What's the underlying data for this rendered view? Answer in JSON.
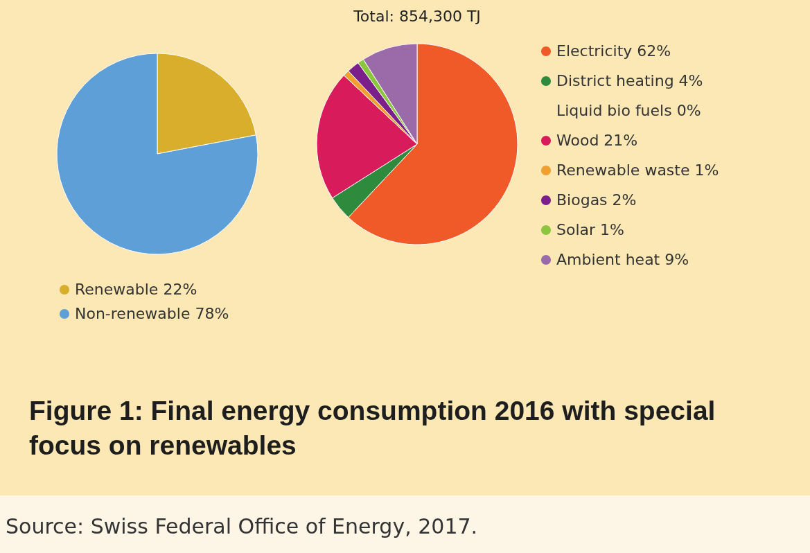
{
  "chart_data": [
    {
      "type": "pie",
      "categories": [
        "Renewable",
        "Non-renewable"
      ],
      "values": [
        22,
        78
      ],
      "value_labels": [
        "22%",
        "78%"
      ],
      "colors": [
        "#d9ae2c",
        "#5e9fd8"
      ],
      "legend": "bottom",
      "annotations": [
        "Figure 1:  Final energy consumption 2016 with special focus on renewables",
        "Source: Swiss Federal Office of Energy, 2017."
      ]
    },
    {
      "type": "pie",
      "title": "Total: 854,300 TJ",
      "categories": [
        "Electricity",
        "District heating",
        "Liquid bio fuels",
        "Wood",
        "Renewable waste",
        "Biogas",
        "Solar",
        "Ambient heat"
      ],
      "values": [
        62,
        4,
        0,
        21,
        1,
        2,
        1,
        9
      ],
      "value_labels": [
        "62%",
        "4%",
        "0%",
        "21%",
        "1%",
        "2%",
        "1%",
        "9%"
      ],
      "colors": [
        "#f05a28",
        "#2e8b3e",
        "#fbe8b4",
        "#d81b5a",
        "#f0a030",
        "#7b1f8a",
        "#8cc63f",
        "#9b6aa8"
      ],
      "legend": "right"
    }
  ]
}
